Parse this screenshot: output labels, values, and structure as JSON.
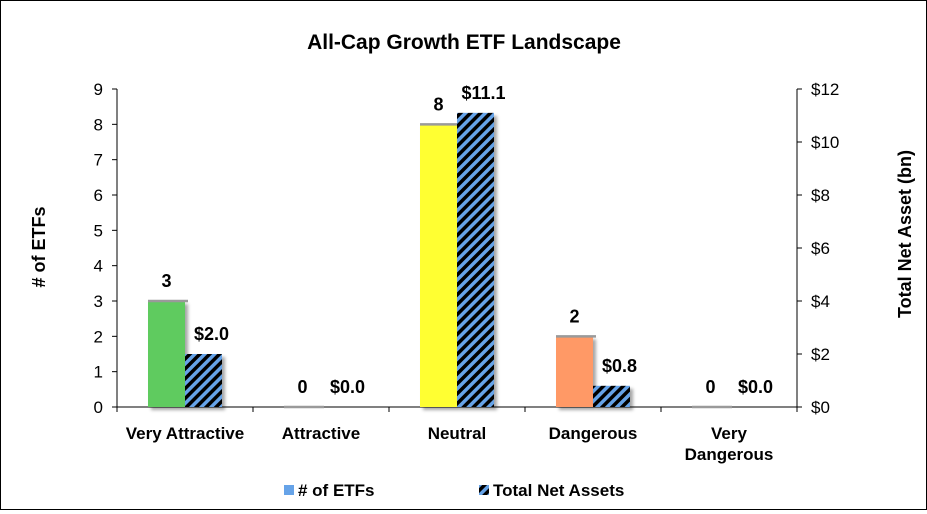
{
  "chart_data": {
    "type": "bar",
    "title": "All-Cap Growth ETF Landscape",
    "categories": [
      "Very Attractive",
      "Attractive",
      "Neutral",
      "Dangerous",
      "Very Dangerous"
    ],
    "category_lines": [
      [
        "Very Attractive"
      ],
      [
        "Attractive"
      ],
      [
        "Neutral"
      ],
      [
        "Dangerous"
      ],
      [
        "Very",
        "Dangerous"
      ]
    ],
    "ylabel": "# of ETFs",
    "y2label": "Total Net Asset (bn)",
    "ylim": [
      0,
      9
    ],
    "y2lim": [
      0,
      12
    ],
    "yticks": [
      "0",
      "1",
      "2",
      "3",
      "4",
      "5",
      "6",
      "7",
      "8",
      "9"
    ],
    "y2ticks": [
      "$0",
      "$2",
      "$4",
      "$6",
      "$8",
      "$10",
      "$12"
    ],
    "series": [
      {
        "name": "# of ETFs",
        "axis": "left",
        "values": [
          3,
          0,
          8,
          2,
          0
        ],
        "labels": [
          "3",
          "0",
          "8",
          "2",
          "0"
        ],
        "colors": [
          "#5FCB5F",
          "#9A9A9A",
          "#FFFF33",
          "#FF9966",
          "#9A9A9A"
        ],
        "legend_color": "#66A3E8"
      },
      {
        "name": "Total Net Assets",
        "axis": "right",
        "values": [
          2.0,
          0.0,
          11.1,
          0.8,
          0.0
        ],
        "labels": [
          "$2.0",
          "$0.0",
          "$11.1",
          "$0.8",
          "$0.0"
        ],
        "pattern": "diagonal-stripes",
        "colors": [
          "#66A3E8",
          "#000000"
        ]
      }
    ],
    "grid": false,
    "legend_position": "bottom"
  }
}
